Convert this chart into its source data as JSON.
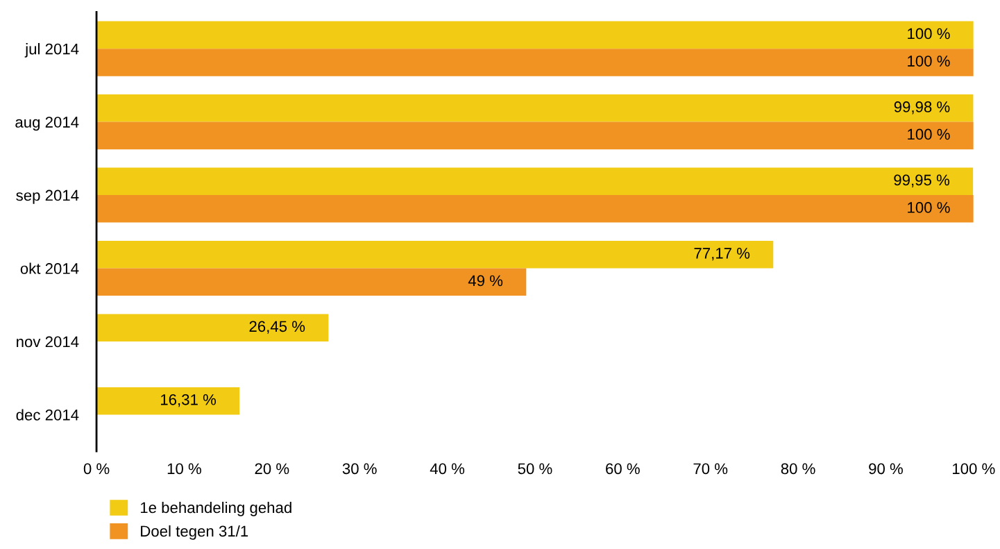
{
  "chart_data": {
    "type": "bar",
    "orientation": "horizontal",
    "categories": [
      "jul 2014",
      "aug 2014",
      "sep 2014",
      "okt 2014",
      "nov 2014",
      "dec 2014"
    ],
    "series": [
      {
        "name": "1e behandeling gehad",
        "color": "#f1cb14",
        "values": [
          100,
          99.98,
          99.95,
          77.17,
          26.45,
          16.31
        ],
        "value_labels": [
          "100 %",
          "99,98 %",
          "99,95 %",
          "77,17 %",
          "26,45 %",
          "16,31 %"
        ]
      },
      {
        "name": "Doel tegen 31/1",
        "color": "#f09322",
        "values": [
          100,
          100,
          100,
          49,
          null,
          null
        ],
        "value_labels": [
          "100 %",
          "100 %",
          "100 %",
          "49 %",
          null,
          null
        ]
      }
    ],
    "xlim": [
      0,
      100
    ],
    "xticks": [
      {
        "value": 0,
        "label": "0 %"
      },
      {
        "value": 10,
        "label": "10 %"
      },
      {
        "value": 20,
        "label": "20 %"
      },
      {
        "value": 30,
        "label": "30 %"
      },
      {
        "value": 40,
        "label": "40 %"
      },
      {
        "value": 50,
        "label": "50 %"
      },
      {
        "value": 60,
        "label": "60 %"
      },
      {
        "value": 70,
        "label": "70 %"
      },
      {
        "value": 80,
        "label": "80 %"
      },
      {
        "value": 90,
        "label": "90 %"
      },
      {
        "value": 100,
        "label": "100 %"
      }
    ],
    "grid": false,
    "legend": "bottom left"
  }
}
